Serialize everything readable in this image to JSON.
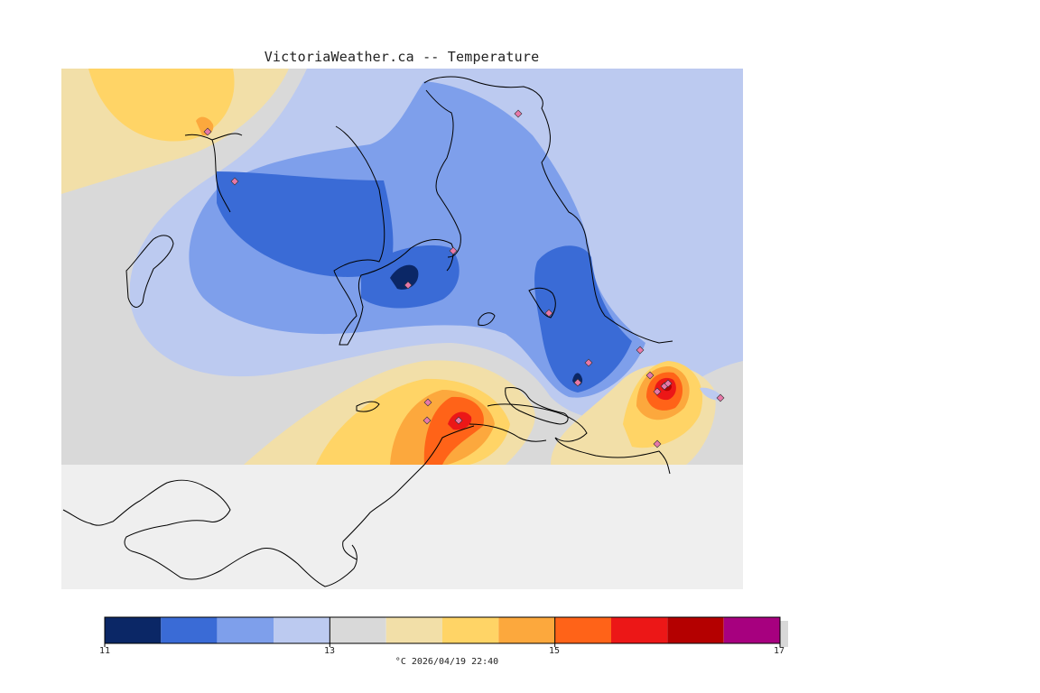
{
  "title": "VictoriaWeather.ca -- Temperature",
  "legend": {
    "unit_and_time": "°C  2026/04/19 22:40",
    "tick_labels": [
      "11",
      "13",
      "15",
      "17"
    ],
    "bins": [
      {
        "from": 11.0,
        "to": 11.5,
        "color": "#0b2766"
      },
      {
        "from": 11.5,
        "to": 12.0,
        "color": "#3a6bd6"
      },
      {
        "from": 12.0,
        "to": 12.5,
        "color": "#7e9feb"
      },
      {
        "from": 12.5,
        "to": 13.0,
        "color": "#bccaf0"
      },
      {
        "from": 13.0,
        "to": 13.5,
        "color": "#d9d9d9"
      },
      {
        "from": 13.5,
        "to": 14.0,
        "color": "#f2dfa8"
      },
      {
        "from": 14.0,
        "to": 14.5,
        "color": "#ffd466"
      },
      {
        "from": 14.5,
        "to": 15.0,
        "color": "#fca83d"
      },
      {
        "from": 15.0,
        "to": 15.5,
        "color": "#ff6318"
      },
      {
        "from": 15.5,
        "to": 16.0,
        "color": "#ec1717"
      },
      {
        "from": 16.0,
        "to": 16.5,
        "color": "#b40000"
      },
      {
        "from": 16.5,
        "to": 17.0,
        "color": "#a7007f"
      }
    ]
  },
  "map": {
    "land_color": "#efefef",
    "coast_color": "#000000",
    "station_color": "#e878a8"
  }
}
